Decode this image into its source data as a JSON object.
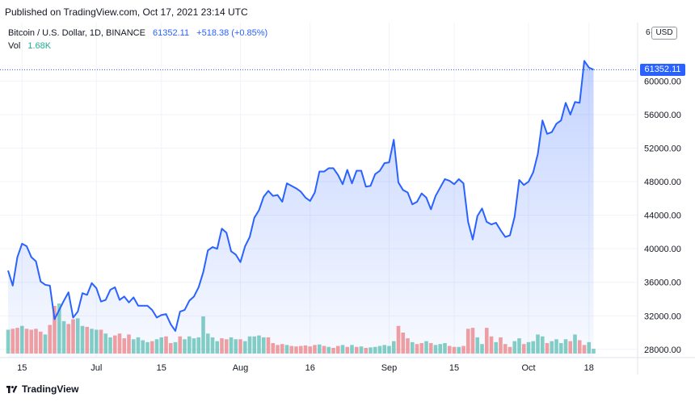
{
  "header": {
    "published": "Published on TradingView.com, Oct 17, 2021 23:14 UTC"
  },
  "legend": {
    "symbol": "Bitcoin / U.S. Dollar, 1D, BINANCE",
    "last": "61352.11",
    "change": "+518.38 (+0.85%)",
    "vol_label": "Vol",
    "vol_value": "1.68K"
  },
  "price_axis": {
    "currency_button": "USD",
    "currency_cut": "6·",
    "last_price_badge": "61352.11"
  },
  "footer": {
    "brand": "TradingView"
  },
  "colors": {
    "line": "#2962ff",
    "area_top": "#2962ff",
    "vol_up": "#22ab94",
    "vol_down": "#ef5350"
  },
  "chart_data": {
    "type": "area",
    "series": [
      {
        "name": "Bitcoin / U.S. Dollar",
        "values": [
          37400,
          35600,
          39000,
          40600,
          40300,
          39000,
          38500,
          36100,
          35700,
          35600,
          31600,
          32700,
          33800,
          34800,
          31800,
          32500,
          34700,
          34500,
          35900,
          35300,
          33700,
          33900,
          35100,
          35400,
          33900,
          34300,
          33600,
          34200,
          33200,
          33200,
          33200,
          32700,
          31800,
          32100,
          32200,
          31000,
          30200,
          32500,
          32700,
          33800,
          34300,
          35400,
          37200,
          39800,
          40200,
          40000,
          42400,
          41900,
          39700,
          39300,
          38400,
          40300,
          41400,
          43700,
          44600,
          46200,
          46900,
          46300,
          46400,
          45600,
          47800,
          47500,
          47200,
          46800,
          46100,
          45700,
          46700,
          49200,
          49200,
          49600,
          49600,
          48800,
          47700,
          49400,
          47800,
          49300,
          49300,
          47400,
          47500,
          48900,
          49300,
          50200,
          50300,
          53000,
          47900,
          47000,
          46700,
          45300,
          45600,
          46600,
          46100,
          44700,
          46300,
          47300,
          48300,
          48100,
          47700,
          48300,
          47800,
          43200,
          41100,
          43900,
          44800,
          43200,
          42900,
          43100,
          42200,
          41400,
          41600,
          43800,
          48200,
          47600,
          48000,
          49100,
          51300,
          55300,
          53700,
          53900,
          54900,
          55300,
          57400,
          56000,
          57500,
          57400,
          62400,
          61600,
          61350
        ]
      }
    ],
    "volume": [
      {
        "v": 0.5,
        "d": "up"
      },
      {
        "v": 0.52,
        "d": "down"
      },
      {
        "v": 0.54,
        "d": "down"
      },
      {
        "v": 0.58,
        "d": "up"
      },
      {
        "v": 0.52,
        "d": "down"
      },
      {
        "v": 0.5,
        "d": "down"
      },
      {
        "v": 0.52,
        "d": "down"
      },
      {
        "v": 0.46,
        "d": "down"
      },
      {
        "v": 0.4,
        "d": "up"
      },
      {
        "v": 0.6,
        "d": "down"
      },
      {
        "v": 1.0,
        "d": "down"
      },
      {
        "v": 1.05,
        "d": "up"
      },
      {
        "v": 0.68,
        "d": "up"
      },
      {
        "v": 0.62,
        "d": "down"
      },
      {
        "v": 0.72,
        "d": "down"
      },
      {
        "v": 0.74,
        "d": "up"
      },
      {
        "v": 0.58,
        "d": "up"
      },
      {
        "v": 0.56,
        "d": "down"
      },
      {
        "v": 0.52,
        "d": "up"
      },
      {
        "v": 0.5,
        "d": "up"
      },
      {
        "v": 0.5,
        "d": "down"
      },
      {
        "v": 0.42,
        "d": "up"
      },
      {
        "v": 0.34,
        "d": "up"
      },
      {
        "v": 0.38,
        "d": "down"
      },
      {
        "v": 0.42,
        "d": "down"
      },
      {
        "v": 0.32,
        "d": "down"
      },
      {
        "v": 0.4,
        "d": "down"
      },
      {
        "v": 0.3,
        "d": "up"
      },
      {
        "v": 0.34,
        "d": "up"
      },
      {
        "v": 0.28,
        "d": "up"
      },
      {
        "v": 0.24,
        "d": "up"
      },
      {
        "v": 0.26,
        "d": "down"
      },
      {
        "v": 0.3,
        "d": "up"
      },
      {
        "v": 0.34,
        "d": "up"
      },
      {
        "v": 0.36,
        "d": "down"
      },
      {
        "v": 0.22,
        "d": "down"
      },
      {
        "v": 0.24,
        "d": "up"
      },
      {
        "v": 0.36,
        "d": "down"
      },
      {
        "v": 0.3,
        "d": "up"
      },
      {
        "v": 0.36,
        "d": "up"
      },
      {
        "v": 0.32,
        "d": "up"
      },
      {
        "v": 0.34,
        "d": "up"
      },
      {
        "v": 0.78,
        "d": "up"
      },
      {
        "v": 0.42,
        "d": "up"
      },
      {
        "v": 0.34,
        "d": "up"
      },
      {
        "v": 0.26,
        "d": "up"
      },
      {
        "v": 0.32,
        "d": "down"
      },
      {
        "v": 0.3,
        "d": "down"
      },
      {
        "v": 0.34,
        "d": "up"
      },
      {
        "v": 0.3,
        "d": "up"
      },
      {
        "v": 0.3,
        "d": "down"
      },
      {
        "v": 0.26,
        "d": "up"
      },
      {
        "v": 0.36,
        "d": "up"
      },
      {
        "v": 0.36,
        "d": "up"
      },
      {
        "v": 0.38,
        "d": "up"
      },
      {
        "v": 0.34,
        "d": "up"
      },
      {
        "v": 0.34,
        "d": "down"
      },
      {
        "v": 0.22,
        "d": "down"
      },
      {
        "v": 0.18,
        "d": "down"
      },
      {
        "v": 0.2,
        "d": "down"
      },
      {
        "v": 0.18,
        "d": "up"
      },
      {
        "v": 0.16,
        "d": "down"
      },
      {
        "v": 0.15,
        "d": "down"
      },
      {
        "v": 0.16,
        "d": "down"
      },
      {
        "v": 0.17,
        "d": "down"
      },
      {
        "v": 0.15,
        "d": "down"
      },
      {
        "v": 0.18,
        "d": "down"
      },
      {
        "v": 0.19,
        "d": "up"
      },
      {
        "v": 0.16,
        "d": "down"
      },
      {
        "v": 0.14,
        "d": "up"
      },
      {
        "v": 0.12,
        "d": "down"
      },
      {
        "v": 0.16,
        "d": "down"
      },
      {
        "v": 0.18,
        "d": "up"
      },
      {
        "v": 0.14,
        "d": "down"
      },
      {
        "v": 0.18,
        "d": "up"
      },
      {
        "v": 0.14,
        "d": "down"
      },
      {
        "v": 0.15,
        "d": "up"
      },
      {
        "v": 0.12,
        "d": "down"
      },
      {
        "v": 0.13,
        "d": "up"
      },
      {
        "v": 0.14,
        "d": "up"
      },
      {
        "v": 0.16,
        "d": "up"
      },
      {
        "v": 0.18,
        "d": "up"
      },
      {
        "v": 0.16,
        "d": "up"
      },
      {
        "v": 0.26,
        "d": "up"
      },
      {
        "v": 0.58,
        "d": "down"
      },
      {
        "v": 0.44,
        "d": "down"
      },
      {
        "v": 0.32,
        "d": "down"
      },
      {
        "v": 0.24,
        "d": "up"
      },
      {
        "v": 0.2,
        "d": "down"
      },
      {
        "v": 0.22,
        "d": "down"
      },
      {
        "v": 0.26,
        "d": "up"
      },
      {
        "v": 0.22,
        "d": "down"
      },
      {
        "v": 0.18,
        "d": "up"
      },
      {
        "v": 0.2,
        "d": "up"
      },
      {
        "v": 0.22,
        "d": "up"
      },
      {
        "v": 0.16,
        "d": "down"
      },
      {
        "v": 0.14,
        "d": "down"
      },
      {
        "v": 0.14,
        "d": "up"
      },
      {
        "v": 0.16,
        "d": "down"
      },
      {
        "v": 0.52,
        "d": "down"
      },
      {
        "v": 0.54,
        "d": "down"
      },
      {
        "v": 0.34,
        "d": "up"
      },
      {
        "v": 0.2,
        "d": "up"
      },
      {
        "v": 0.54,
        "d": "down"
      },
      {
        "v": 0.36,
        "d": "down"
      },
      {
        "v": 0.24,
        "d": "up"
      },
      {
        "v": 0.34,
        "d": "down"
      },
      {
        "v": 0.2,
        "d": "down"
      },
      {
        "v": 0.14,
        "d": "down"
      },
      {
        "v": 0.26,
        "d": "up"
      },
      {
        "v": 0.32,
        "d": "up"
      },
      {
        "v": 0.2,
        "d": "down"
      },
      {
        "v": 0.24,
        "d": "up"
      },
      {
        "v": 0.26,
        "d": "up"
      },
      {
        "v": 0.4,
        "d": "up"
      },
      {
        "v": 0.36,
        "d": "up"
      },
      {
        "v": 0.22,
        "d": "down"
      },
      {
        "v": 0.26,
        "d": "up"
      },
      {
        "v": 0.3,
        "d": "up"
      },
      {
        "v": 0.22,
        "d": "up"
      },
      {
        "v": 0.3,
        "d": "up"
      },
      {
        "v": 0.26,
        "d": "down"
      },
      {
        "v": 0.4,
        "d": "up"
      },
      {
        "v": 0.28,
        "d": "down"
      },
      {
        "v": 0.18,
        "d": "down"
      },
      {
        "v": 0.24,
        "d": "up"
      },
      {
        "v": 0.1,
        "d": "up"
      }
    ],
    "ylim": [
      27500,
      63500
    ],
    "y_ticks": [
      "28000.00",
      "32000.00",
      "36000.00",
      "40000.00",
      "44000.00",
      "48000.00",
      "52000.00",
      "56000.00",
      "60000.00"
    ],
    "x_ticks": [
      {
        "label": "15",
        "index": 3
      },
      {
        "label": "Jul",
        "index": 19
      },
      {
        "label": "15",
        "index": 33
      },
      {
        "label": "Aug",
        "index": 50
      },
      {
        "label": "16",
        "index": 65
      },
      {
        "label": "Sep",
        "index": 82
      },
      {
        "label": "15",
        "index": 96
      },
      {
        "label": "Oct",
        "index": 112
      },
      {
        "label": "18",
        "index": 125
      }
    ],
    "grid": true,
    "last_price": 61352.11
  }
}
